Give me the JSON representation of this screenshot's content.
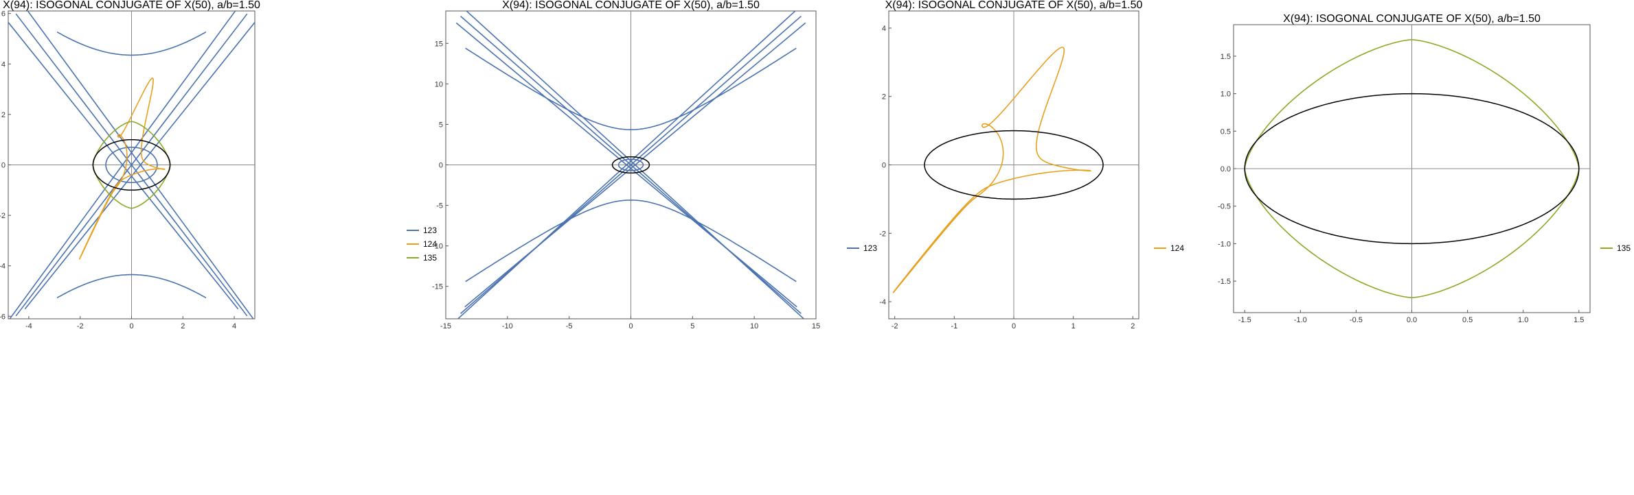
{
  "colors": {
    "123": "#4a72b0",
    "124": "#e8a01f",
    "135": "#8aaa25",
    "ellipse": "#000000"
  },
  "chart_data": [
    {
      "type": "line",
      "title": "X(94): ISOGONAL CONJUGATE OF X(50), a/b=1.50",
      "xlim": [
        -4.8,
        4.8
      ],
      "ylim": [
        -6.1,
        6.1
      ],
      "xticks": [
        "-4",
        "-2",
        "0",
        "2",
        "4"
      ],
      "yticks": [
        "-6",
        "-4",
        "-2",
        "0",
        "2",
        "4",
        "6"
      ],
      "legend": [
        "123",
        "124",
        "135"
      ],
      "legend_position": "right",
      "grid": false
    },
    {
      "type": "line",
      "title": "X(94): ISOGONAL CONJUGATE OF X(50), a/b=1.50",
      "xlim": [
        -15,
        15
      ],
      "ylim": [
        -19,
        19
      ],
      "xticks": [
        "-15",
        "-10",
        "-5",
        "0",
        "5",
        "10",
        "15"
      ],
      "yticks": [
        "-15",
        "-10",
        "-5",
        "0",
        "5",
        "10",
        "15"
      ],
      "legend": [
        "123"
      ],
      "legend_position": "right",
      "grid": false
    },
    {
      "type": "line",
      "title": "X(94): ISOGONAL CONJUGATE OF X(50), a/b=1.50",
      "xlim": [
        -2.1,
        2.1
      ],
      "ylim": [
        -4.5,
        4.5
      ],
      "xticks": [
        "-2",
        "-1",
        "0",
        "1",
        "2"
      ],
      "yticks": [
        "-4",
        "-2",
        "0",
        "2",
        "4"
      ],
      "legend": [
        "124"
      ],
      "legend_position": "right",
      "grid": false
    },
    {
      "type": "line",
      "title": "X(94): ISOGONAL CONJUGATE OF X(50), a/b=1.50",
      "xlim": [
        -1.6,
        1.6
      ],
      "ylim": [
        -1.92,
        1.92
      ],
      "xticks": [
        "-1.5",
        "-1.0",
        "-0.5",
        "0.0",
        "0.5",
        "1.0",
        "1.5"
      ],
      "yticks": [
        "-1.5",
        "-1.0",
        "-0.5",
        "0.0",
        "0.5",
        "1.0",
        "1.5"
      ],
      "legend": [
        "135"
      ],
      "legend_position": "right",
      "grid": false
    }
  ]
}
